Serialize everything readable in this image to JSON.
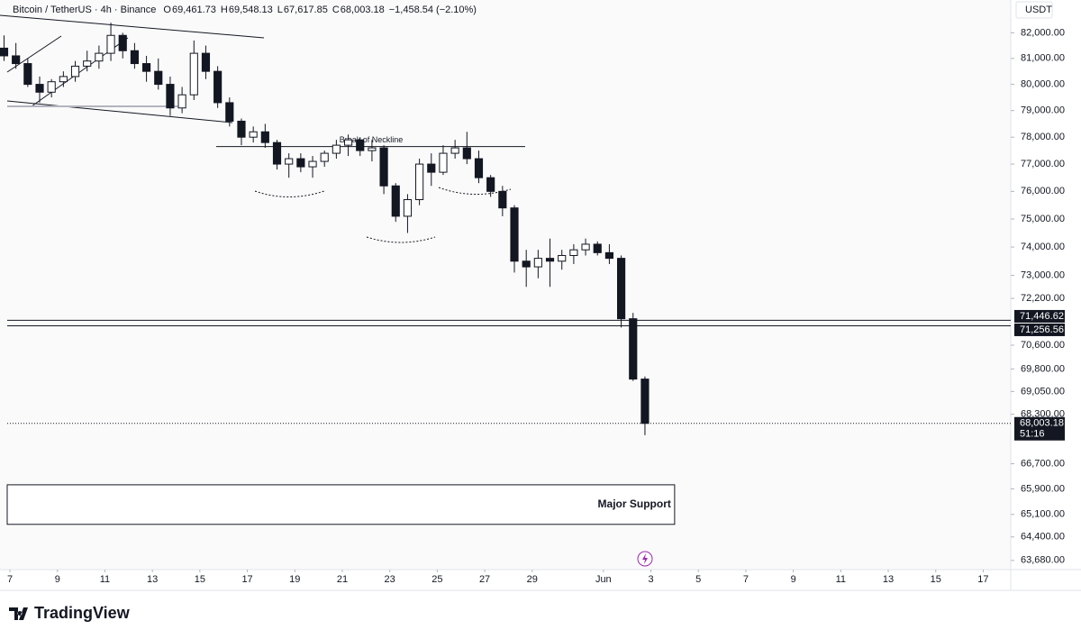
{
  "chart_data": {
    "type": "candlestick",
    "symbol": "Bitcoin / TetherUS · 4h · Binance",
    "ohlc_header": [
      {
        "key": "O",
        "label": "69,461.73"
      },
      {
        "key": "H",
        "label": "69,548.13"
      },
      {
        "key": "L",
        "label": "67,617.85"
      },
      {
        "key": "C",
        "label": "68,003.18"
      }
    ],
    "change": "−1,458.54 (−2.10%)",
    "currency": "USDT",
    "log_scale": true,
    "up_color": "#ffffff",
    "down_color": "#131722",
    "x": [
      -0.25,
      0.25,
      0.75,
      1.25,
      1.75,
      2.25,
      2.75,
      3.25,
      3.75,
      4.25,
      4.75,
      5.25,
      5.75,
      6.25,
      6.75,
      7.25,
      7.75,
      8.25,
      8.75,
      9.25,
      9.75,
      10.25,
      10.75,
      11.25,
      11.75,
      12.25,
      12.75,
      13.25,
      13.75,
      14.25,
      14.75,
      15.25,
      15.75,
      16.25,
      16.75,
      17.25,
      17.75,
      18.25,
      18.75,
      19.25,
      19.75,
      20.25,
      20.75,
      21.25,
      21.75,
      22.25,
      22.75,
      23.25,
      23.75,
      24.25,
      24.75,
      25.25,
      25.75,
      26.25,
      26.75
    ],
    "open": [
      81400,
      81100,
      80800,
      80000,
      79700,
      80100,
      80300,
      80700,
      80900,
      81200,
      81900,
      81300,
      80800,
      80500,
      80000,
      79100,
      79600,
      81200,
      80500,
      79300,
      78600,
      78000,
      78200,
      77800,
      77000,
      77200,
      76900,
      77100,
      77400,
      77700,
      77900,
      77500,
      77600,
      76200,
      75100,
      75700,
      77000,
      76700,
      77400,
      77600,
      77200,
      76500,
      76000,
      75400,
      73500,
      73300,
      73600,
      73500,
      73700,
      73900,
      74100,
      73800,
      73600,
      71500,
      69461.73
    ],
    "high": [
      81900,
      81600,
      81000,
      80300,
      80200,
      80500,
      80900,
      81300,
      81500,
      82400,
      82000,
      81600,
      81100,
      81000,
      80300,
      79900,
      81700,
      81500,
      80700,
      79500,
      78700,
      78400,
      78500,
      77900,
      77400,
      77400,
      77300,
      77500,
      77900,
      78100,
      78000,
      77900,
      77700,
      76300,
      75900,
      77200,
      77400,
      77700,
      77900,
      78200,
      77500,
      76600,
      76200,
      75500,
      73900,
      73900,
      74300,
      73900,
      74100,
      74300,
      74200,
      74100,
      73700,
      71700,
      69548.13
    ],
    "low": [
      80900,
      80600,
      79900,
      79300,
      79500,
      79900,
      80100,
      80500,
      80600,
      80900,
      81000,
      80600,
      80100,
      79800,
      78800,
      78900,
      79400,
      80200,
      79100,
      78400,
      77700,
      77800,
      77600,
      76800,
      76500,
      76700,
      76500,
      76900,
      77200,
      77300,
      77300,
      77100,
      75900,
      74900,
      74500,
      75500,
      76200,
      76600,
      77200,
      77000,
      76300,
      75800,
      75100,
      73100,
      72600,
      72900,
      72600,
      73200,
      73400,
      73700,
      73700,
      73400,
      71200,
      69400,
      67617.85
    ],
    "close": [
      81100,
      80800,
      80000,
      79700,
      80100,
      80300,
      80700,
      80900,
      81200,
      81900,
      81300,
      80800,
      80500,
      80000,
      79100,
      79600,
      81200,
      80500,
      79300,
      78600,
      78000,
      78200,
      77800,
      77000,
      77200,
      76900,
      77100,
      77400,
      77700,
      77900,
      77500,
      77600,
      76200,
      75100,
      75700,
      77000,
      76700,
      77400,
      77600,
      77200,
      76500,
      76000,
      75400,
      73500,
      73300,
      73600,
      73500,
      73700,
      73900,
      74100,
      73800,
      73600,
      71500,
      69461.73,
      68003.18
    ],
    "xlim": [
      -0.42,
      42.16
    ],
    "xticks": [
      {
        "value": 0,
        "label": "7"
      },
      {
        "value": 2,
        "label": "9"
      },
      {
        "value": 4,
        "label": "11"
      },
      {
        "value": 6,
        "label": "13"
      },
      {
        "value": 8,
        "label": "15"
      },
      {
        "value": 10,
        "label": "17"
      },
      {
        "value": 12,
        "label": "19"
      },
      {
        "value": 14,
        "label": "21"
      },
      {
        "value": 16,
        "label": "23"
      },
      {
        "value": 18,
        "label": "25"
      },
      {
        "value": 20,
        "label": "27"
      },
      {
        "value": 22,
        "label": "29"
      },
      {
        "value": 25,
        "label": "Jun"
      },
      {
        "value": 27,
        "label": "3"
      },
      {
        "value": 29,
        "label": "5"
      },
      {
        "value": 31,
        "label": "7"
      },
      {
        "value": 33,
        "label": "9"
      },
      {
        "value": 35,
        "label": "11"
      },
      {
        "value": 37,
        "label": "13"
      },
      {
        "value": 39,
        "label": "15"
      },
      {
        "value": 41,
        "label": "17"
      }
    ],
    "ylim": [
      63400,
      83300
    ],
    "yticks": [
      {
        "value": 82000,
        "label": "82,000.00"
      },
      {
        "value": 81000,
        "label": "81,000.00"
      },
      {
        "value": 80000,
        "label": "80,000.00"
      },
      {
        "value": 79000,
        "label": "79,000.00"
      },
      {
        "value": 78000,
        "label": "78,000.00"
      },
      {
        "value": 77000,
        "label": "77,000.00"
      },
      {
        "value": 76000,
        "label": "76,000.00"
      },
      {
        "value": 75000,
        "label": "75,000.00"
      },
      {
        "value": 74000,
        "label": "74,000.00"
      },
      {
        "value": 73000,
        "label": "73,000.00"
      },
      {
        "value": 72200,
        "label": "72,200.00"
      },
      {
        "value": 70600,
        "label": "70,600.00"
      },
      {
        "value": 69800,
        "label": "69,800.00"
      },
      {
        "value": 69050,
        "label": "69,050.00"
      },
      {
        "value": 68300,
        "label": "68,300.00"
      },
      {
        "value": 66700,
        "label": "66,700.00"
      },
      {
        "value": 65900,
        "label": "65,900.00"
      },
      {
        "value": 65100,
        "label": "65,100.00"
      },
      {
        "value": 64400,
        "label": "64,400.00"
      },
      {
        "value": 63680,
        "label": "63,680.00"
      }
    ],
    "price_lines": [
      {
        "value": 71446.62,
        "label": "71,446.62"
      },
      {
        "value": 71256.56,
        "label": "71,256.56"
      }
    ],
    "last_price": {
      "value": 68003.18,
      "label": "68,003.18"
    },
    "countdown": "51:16",
    "support_zone": {
      "label": "Major Support",
      "range": [
        64790,
        66030
      ],
      "x_end": 28.0
    },
    "neckline": {
      "label": "Break of Neckline",
      "value": 77650
    },
    "brand": "TradingView"
  }
}
